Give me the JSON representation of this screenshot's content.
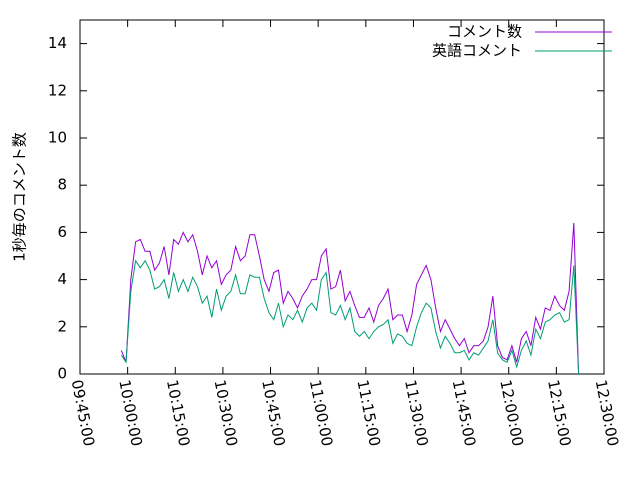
{
  "chart_data": {
    "type": "line",
    "y_label": "1秒毎のコメント数",
    "xlim": [
      "09:45:00",
      "12:30:00"
    ],
    "xticks": [
      "09:45:00",
      "10:00:00",
      "10:15:00",
      "10:30:00",
      "10:45:00",
      "11:00:00",
      "11:15:00",
      "11:30:00",
      "11:45:00",
      "12:00:00",
      "12:15:00",
      "12:30:00"
    ],
    "ylim": [
      0,
      15
    ],
    "yticks": [
      0,
      2,
      4,
      6,
      8,
      10,
      12,
      14
    ],
    "legend": "top-right",
    "x": [
      "09:58:00",
      "09:59:30",
      "10:01:00",
      "10:02:30",
      "10:04:00",
      "10:05:30",
      "10:07:00",
      "10:08:30",
      "10:10:00",
      "10:11:30",
      "10:13:00",
      "10:14:30",
      "10:16:00",
      "10:17:30",
      "10:19:00",
      "10:20:30",
      "10:22:00",
      "10:23:30",
      "10:25:00",
      "10:26:30",
      "10:28:00",
      "10:29:30",
      "10:31:00",
      "10:32:30",
      "10:34:00",
      "10:35:30",
      "10:37:00",
      "10:38:30",
      "10:40:00",
      "10:41:30",
      "10:43:00",
      "10:44:30",
      "10:46:00",
      "10:47:30",
      "10:49:00",
      "10:50:30",
      "10:52:00",
      "10:53:30",
      "10:55:00",
      "10:56:30",
      "10:58:00",
      "10:59:30",
      "11:01:00",
      "11:02:30",
      "11:04:00",
      "11:05:30",
      "11:07:00",
      "11:08:30",
      "11:10:00",
      "11:11:30",
      "11:13:00",
      "11:14:30",
      "11:16:00",
      "11:17:30",
      "11:19:00",
      "11:20:30",
      "11:22:00",
      "11:23:30",
      "11:25:00",
      "11:26:30",
      "11:28:00",
      "11:29:30",
      "11:31:00",
      "11:32:30",
      "11:34:00",
      "11:35:30",
      "11:37:00",
      "11:38:30",
      "11:40:00",
      "11:41:30",
      "11:43:00",
      "11:44:30",
      "11:46:00",
      "11:47:30",
      "11:49:00",
      "11:50:30",
      "11:52:00",
      "11:53:30",
      "11:55:00",
      "11:56:30",
      "11:58:00",
      "11:59:30",
      "12:01:00",
      "12:02:30",
      "12:04:00",
      "12:05:30",
      "12:07:00",
      "12:08:30",
      "12:10:00",
      "12:11:30",
      "12:13:00",
      "12:14:30",
      "12:16:00",
      "12:17:30",
      "12:19:00",
      "12:20:30",
      "12:22:00"
    ],
    "series": [
      {
        "name": "コメント数",
        "color": "#9400d3",
        "values": [
          1.0,
          0.5,
          4.0,
          5.6,
          5.7,
          5.2,
          5.2,
          4.4,
          4.7,
          5.4,
          4.2,
          5.7,
          5.5,
          6.0,
          5.6,
          5.9,
          5.2,
          4.2,
          5.0,
          4.5,
          4.8,
          3.8,
          4.2,
          4.4,
          5.4,
          4.8,
          5.0,
          5.9,
          5.9,
          5.0,
          4.0,
          3.5,
          4.3,
          4.4,
          3.0,
          3.5,
          3.2,
          2.8,
          3.3,
          3.6,
          4.0,
          4.0,
          5.0,
          5.3,
          3.6,
          3.7,
          4.4,
          3.1,
          3.5,
          2.9,
          2.4,
          2.4,
          2.8,
          2.2,
          2.9,
          3.2,
          3.6,
          2.3,
          2.5,
          2.5,
          1.8,
          2.5,
          3.8,
          4.2,
          4.6,
          4.0,
          2.8,
          1.8,
          2.3,
          1.9,
          1.5,
          1.2,
          1.5,
          0.9,
          1.2,
          1.2,
          1.4,
          2.0,
          3.3,
          1.2,
          0.7,
          0.6,
          1.2,
          0.5,
          1.5,
          1.8,
          1.2,
          2.4,
          1.9,
          2.8,
          2.7,
          3.3,
          2.9,
          2.7,
          3.5,
          6.4,
          0.0
        ]
      },
      {
        "name": "英語コメント",
        "color": "#009e73",
        "values": [
          0.8,
          0.5,
          3.5,
          4.8,
          4.5,
          4.8,
          4.4,
          3.6,
          3.7,
          4.0,
          3.2,
          4.3,
          3.5,
          4.0,
          3.5,
          4.1,
          3.7,
          3.0,
          3.3,
          2.4,
          3.6,
          2.7,
          3.3,
          3.5,
          4.2,
          3.4,
          3.4,
          4.2,
          4.1,
          4.1,
          3.2,
          2.6,
          2.3,
          3.0,
          2.0,
          2.5,
          2.3,
          2.7,
          2.2,
          2.8,
          3.0,
          2.7,
          4.0,
          4.3,
          2.6,
          2.5,
          2.9,
          2.3,
          2.8,
          1.8,
          1.6,
          1.8,
          1.5,
          1.8,
          2.0,
          2.1,
          2.3,
          1.3,
          1.7,
          1.6,
          1.3,
          1.2,
          2.0,
          2.6,
          3.0,
          2.8,
          1.8,
          1.1,
          1.6,
          1.3,
          0.9,
          0.9,
          1.0,
          0.6,
          0.9,
          0.8,
          1.1,
          1.4,
          2.3,
          0.9,
          0.6,
          0.5,
          1.0,
          0.3,
          1.0,
          1.4,
          0.8,
          1.9,
          1.5,
          2.2,
          2.3,
          2.5,
          2.6,
          2.2,
          2.3,
          4.6,
          0.0
        ]
      }
    ]
  }
}
